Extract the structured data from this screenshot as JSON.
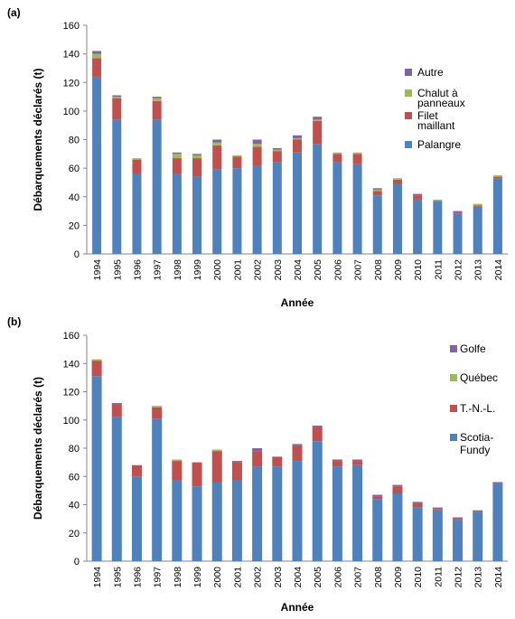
{
  "colors": {
    "palangre": "#4f81bd",
    "filet": "#c0504d",
    "chalut": "#9bbb59",
    "autre": "#8064a2",
    "axis": "#868686",
    "grid": "#ffffff"
  },
  "chart_data": [
    {
      "type": "bar",
      "stacked": true,
      "panel_label": "(a)",
      "xlabel": "Année",
      "ylabel": "Débarquements déclarés (t)",
      "ylim": [
        0,
        160
      ],
      "yticks": [
        0,
        20,
        40,
        60,
        80,
        100,
        120,
        140,
        160
      ],
      "grid": false,
      "legend_position": "right",
      "categories": [
        "1994",
        "1995",
        "1996",
        "1997",
        "1998",
        "1999",
        "2000",
        "2001",
        "2002",
        "2003",
        "2004",
        "2005",
        "2006",
        "2007",
        "2008",
        "2009",
        "2010",
        "2011",
        "2012",
        "2013",
        "2014"
      ],
      "series": [
        {
          "name": "Palangre",
          "color_key": "palangre",
          "values": [
            124,
            94,
            56,
            94,
            56,
            54,
            59,
            60,
            62,
            64,
            71,
            77,
            64,
            63,
            41,
            49,
            38,
            37,
            28,
            33,
            53
          ]
        },
        {
          "name": "Filet maillant",
          "color_key": "filet",
          "values": [
            13,
            15,
            10,
            13,
            11,
            13,
            17,
            8,
            13,
            8,
            9,
            16,
            6,
            7,
            3,
            3,
            3,
            0,
            1,
            1,
            1
          ]
        },
        {
          "name": "Chalut à panneaux",
          "color_key": "chalut",
          "values": [
            3,
            1,
            1,
            2,
            3,
            2,
            2,
            1,
            2,
            1,
            1,
            1,
            1,
            1,
            1,
            1,
            0,
            1,
            0,
            1,
            1
          ]
        },
        {
          "name": "Autre",
          "color_key": "autre",
          "values": [
            2,
            1,
            0,
            1,
            1,
            1,
            2,
            0,
            3,
            1,
            2,
            2,
            0,
            0,
            1,
            0,
            1,
            0,
            1,
            0,
            0
          ]
        }
      ],
      "legend": [
        {
          "lines": [
            "Autre"
          ],
          "color_key": "autre"
        },
        {
          "lines": [
            "Chalut à",
            "panneaux"
          ],
          "color_key": "chalut"
        },
        {
          "lines": [
            "Filet",
            "maillant"
          ],
          "color_key": "filet"
        },
        {
          "lines": [
            "Palangre"
          ],
          "color_key": "palangre"
        }
      ]
    },
    {
      "type": "bar",
      "stacked": true,
      "panel_label": "(b)",
      "xlabel": "Année",
      "ylabel": "Débarquements déclarés (t)",
      "ylim": [
        0,
        160
      ],
      "yticks": [
        0,
        20,
        40,
        60,
        80,
        100,
        120,
        140,
        160
      ],
      "grid": false,
      "legend_position": "right",
      "categories": [
        "1994",
        "1995",
        "1996",
        "1997",
        "1998",
        "1999",
        "2000",
        "2001",
        "2002",
        "2003",
        "2004",
        "2005",
        "2006",
        "2007",
        "2008",
        "2009",
        "2010",
        "2011",
        "2012",
        "2013",
        "2014"
      ],
      "series": [
        {
          "name": "Scotia-Fundy",
          "color_key": "palangre",
          "values": [
            131,
            102,
            60,
            101,
            57,
            53,
            56,
            57,
            67,
            67,
            71,
            85,
            67,
            68,
            44,
            48,
            38,
            36,
            29,
            35,
            55
          ]
        },
        {
          "name": "T.-N.-L.",
          "color_key": "filet",
          "values": [
            11,
            9,
            8,
            8,
            14,
            17,
            22,
            13,
            11,
            7,
            11,
            10,
            4,
            3,
            2,
            5,
            3,
            1,
            1,
            1,
            0
          ]
        },
        {
          "name": "Québec",
          "color_key": "chalut",
          "values": [
            1,
            0,
            0,
            1,
            1,
            0,
            1,
            0,
            0,
            0,
            0,
            0,
            0,
            0,
            0,
            0,
            0,
            0,
            0,
            0,
            0
          ]
        },
        {
          "name": "Golfe",
          "color_key": "autre",
          "values": [
            0,
            1,
            0,
            0,
            0,
            0,
            0,
            1,
            2,
            0,
            1,
            1,
            1,
            1,
            1,
            1,
            1,
            1,
            1,
            0,
            1
          ]
        }
      ],
      "legend": [
        {
          "lines": [
            "Golfe"
          ],
          "color_key": "autre"
        },
        {
          "lines": [
            "Québec"
          ],
          "color_key": "chalut"
        },
        {
          "lines": [
            "T.-N.-L."
          ],
          "color_key": "filet"
        },
        {
          "lines": [
            "Scotia-",
            "Fundy"
          ],
          "color_key": "palangre"
        }
      ]
    }
  ]
}
